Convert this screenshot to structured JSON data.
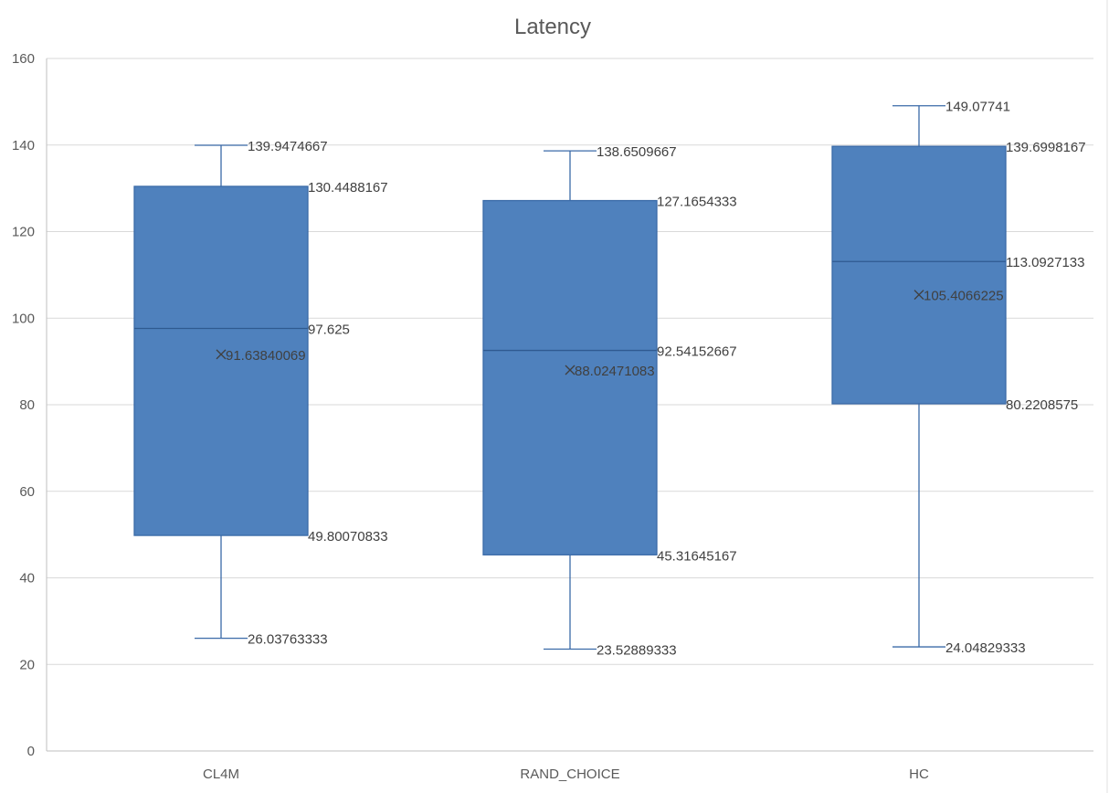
{
  "chart_data": {
    "type": "box",
    "title": "Latency",
    "xlabel": "",
    "ylabel": "",
    "ylim": [
      0,
      160
    ],
    "yticks": [
      0,
      20,
      40,
      60,
      80,
      100,
      120,
      140,
      160
    ],
    "grid": true,
    "legend": "none",
    "box_color": "#4f81bd",
    "categories": [
      "CL4M",
      "RAND_CHOICE",
      "HC"
    ],
    "boxes": [
      {
        "category": "CL4M",
        "min": 26.03763333,
        "q1": 49.80070833,
        "median": 97.625,
        "q3": 130.4488167,
        "max": 139.9474667,
        "mean": 91.63840069,
        "labels": {
          "min": "26.03763333",
          "q1": "49.80070833",
          "median": "97.625",
          "q3": "130.4488167",
          "max": "139.9474667",
          "mean": "91.63840069"
        }
      },
      {
        "category": "RAND_CHOICE",
        "min": 23.52889333,
        "q1": 45.31645167,
        "median": 92.54152667,
        "q3": 127.1654333,
        "max": 138.6509667,
        "mean": 88.02471083,
        "labels": {
          "min": "23.52889333",
          "q1": "45.31645167",
          "median": "92.54152667",
          "q3": "127.1654333",
          "max": "138.6509667",
          "mean": "88.02471083"
        }
      },
      {
        "category": "HC",
        "min": 24.04829333,
        "q1": 80.2208575,
        "median": 113.0927133,
        "q3": 139.6998167,
        "max": 149.07741,
        "mean": 105.4066225,
        "labels": {
          "min": "24.04829333",
          "q1": "80.2208575",
          "median": "113.0927133",
          "q3": "139.6998167",
          "max": "149.07741",
          "mean": "105.4066225"
        }
      }
    ]
  }
}
